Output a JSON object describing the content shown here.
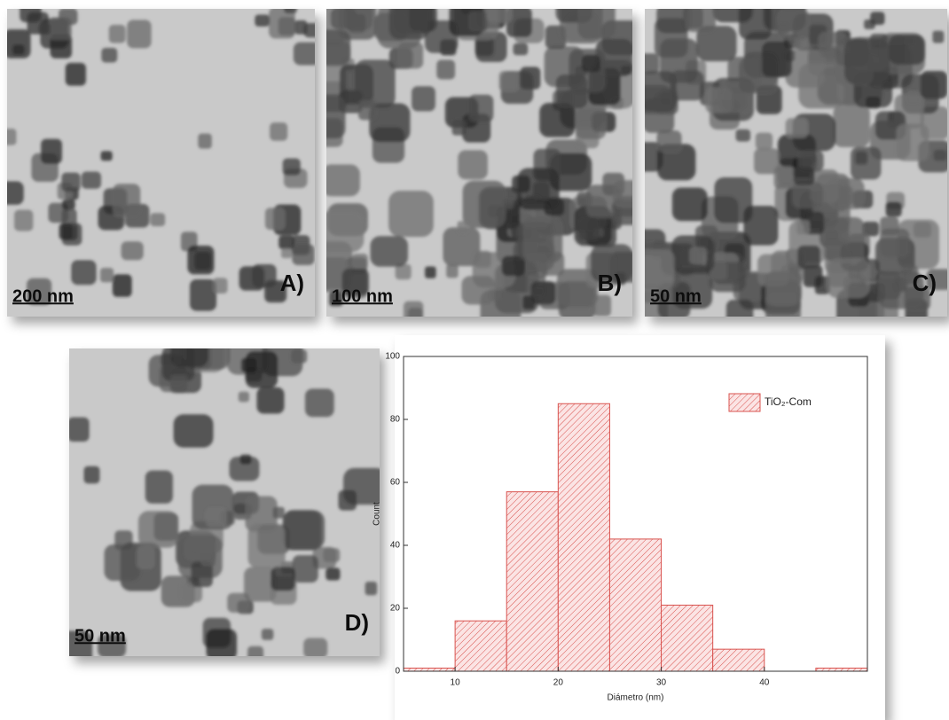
{
  "panels": [
    {
      "label": "A)",
      "scale": "200 nm"
    },
    {
      "label": "B)",
      "scale": "100 nm"
    },
    {
      "label": "C)",
      "scale": "50 nm"
    },
    {
      "label": "D)",
      "scale": "50 nm"
    }
  ],
  "chart_data": {
    "type": "histogram",
    "x_label": "Diámetro (nm)",
    "y_label": "Count",
    "bins": [
      5,
      10,
      15,
      20,
      25,
      30,
      35,
      40,
      45,
      50
    ],
    "series": [
      {
        "name": "TiO₂-Com",
        "color": "#d9534f",
        "values": [
          1,
          16,
          57,
          85,
          42,
          21,
          7,
          0,
          1
        ]
      }
    ],
    "xlim": [
      5,
      50
    ],
    "xticks": [
      10,
      20,
      30,
      40
    ],
    "ylim": [
      0,
      100
    ],
    "yticks": [
      0,
      20,
      40,
      60,
      80,
      100
    ],
    "legend": "upper right"
  }
}
